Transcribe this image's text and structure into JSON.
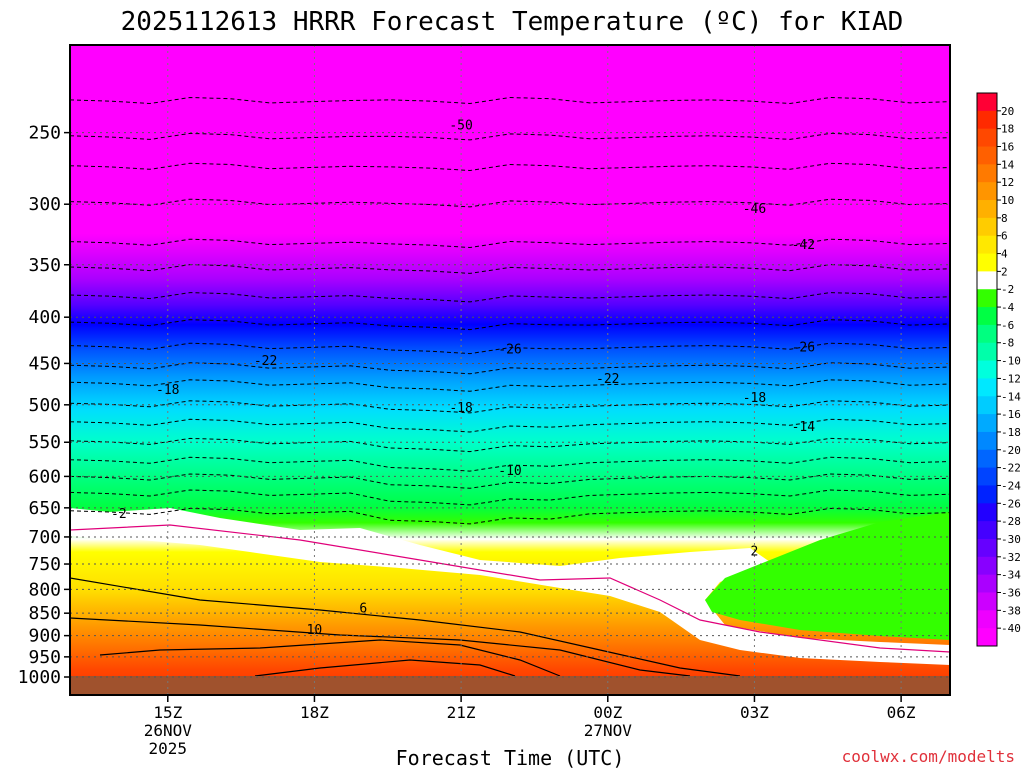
{
  "title": "2025112613 HRRR Forecast Temperature (ºC) for KIAD",
  "xlabel": "Forecast Time (UTC)",
  "credit": "coolwx.com/modelts",
  "chart_data": {
    "type": "heatmap",
    "title": "2025112613 HRRR Forecast Temperature (ºC) for KIAD",
    "xlabel": "Forecast Time (UTC)",
    "ylabel": "",
    "x_hours_range": [
      13,
      31
    ],
    "y_pressure_range_hPa": [
      1000,
      200
    ],
    "y_scale": "log-pressure",
    "x_ticks": [
      {
        "hour": 15,
        "lines": [
          "15Z",
          "26NOV",
          "2025"
        ]
      },
      {
        "hour": 18,
        "lines": [
          "18Z"
        ]
      },
      {
        "hour": 21,
        "lines": [
          "21Z"
        ]
      },
      {
        "hour": 24,
        "lines": [
          "00Z",
          "27NOV"
        ]
      },
      {
        "hour": 27,
        "lines": [
          "03Z"
        ]
      },
      {
        "hour": 30,
        "lines": [
          "06Z"
        ]
      }
    ],
    "y_ticks": [
      250,
      300,
      350,
      400,
      450,
      500,
      550,
      600,
      650,
      700,
      750,
      800,
      850,
      900,
      950,
      1000
    ],
    "colorbar_labels": [
      "20",
      "18",
      "16",
      "14",
      "12",
      "10",
      "8",
      "6",
      "4",
      "2",
      "-2",
      "-4",
      "-6",
      "-8",
      "-10",
      "-12",
      "-14",
      "-16",
      "-18",
      "-20",
      "-22",
      "-24",
      "-26",
      "-28",
      "-30",
      "-32",
      "-34",
      "-36",
      "-38",
      "-40"
    ],
    "colorbar_colors": [
      "#ff0035",
      "#ff2a00",
      "#ff4800",
      "#ff6000",
      "#ff7a00",
      "#ff9500",
      "#ffb000",
      "#ffcc00",
      "#ffe800",
      "#ffff00",
      "#ffffff",
      "#33ff00",
      "#00ff44",
      "#00ff80",
      "#00ffaa",
      "#00ffdd",
      "#00e8ff",
      "#00ccff",
      "#00aaff",
      "#0088ff",
      "#0066ff",
      "#0044ff",
      "#0022ff",
      "#2200ff",
      "#4400ff",
      "#6600ff",
      "#8800ff",
      "#aa00ff",
      "#cc00ff",
      "#ee00ff",
      "#ff00ff"
    ],
    "temperature_profile": {
      "pressure_hPa": [
        1000,
        950,
        900,
        850,
        800,
        750,
        700,
        650,
        600,
        550,
        500,
        450,
        400,
        350,
        300,
        250,
        200
      ],
      "at_hour": {
        "14": [
          11,
          12,
          12,
          8,
          5,
          3,
          1,
          -1,
          -6,
          -11,
          -17,
          -22,
          -28,
          -36,
          -45,
          -51,
          -56
        ],
        "20": [
          16,
          14,
          12,
          8,
          5,
          3,
          1,
          -2,
          -7,
          -12,
          -18,
          -24,
          -30,
          -38,
          -47,
          -52,
          -56
        ],
        "24": [
          12,
          10,
          8,
          5,
          2,
          -1,
          -3,
          -5,
          -8,
          -13,
          -19,
          -25,
          -31,
          -38,
          -46,
          -51,
          -55
        ],
        "29": [
          5,
          4,
          1,
          -2,
          -3,
          -3,
          -4,
          -6,
          -9,
          -13,
          -18,
          -24,
          -30,
          -38,
          -45,
          -51,
          -55
        ]
      }
    },
    "contour_labels": [
      {
        "value": "-50",
        "hour": 21,
        "hPa": 245
      },
      {
        "value": "-46",
        "hour": 27,
        "hPa": 303
      },
      {
        "value": "-42",
        "hour": 28,
        "hPa": 332
      },
      {
        "value": "-26",
        "hour": 22,
        "hPa": 433
      },
      {
        "value": "-26",
        "hour": 28,
        "hPa": 431
      },
      {
        "value": "-22",
        "hour": 17,
        "hPa": 446
      },
      {
        "value": "-22",
        "hour": 24,
        "hPa": 467
      },
      {
        "value": "-18",
        "hour": 15,
        "hPa": 480
      },
      {
        "value": "-18",
        "hour": 21,
        "hPa": 503
      },
      {
        "value": "-18",
        "hour": 27,
        "hPa": 490
      },
      {
        "value": "-14",
        "hour": 28,
        "hPa": 528
      },
      {
        "value": "-10",
        "hour": 22,
        "hPa": 590
      },
      {
        "value": "-2",
        "hour": 14,
        "hPa": 659
      },
      {
        "value": "2",
        "hour": 27,
        "hPa": 725
      },
      {
        "value": "6",
        "hour": 19,
        "hPa": 838
      },
      {
        "value": "10",
        "hour": 18,
        "hPa": 885
      }
    ]
  }
}
